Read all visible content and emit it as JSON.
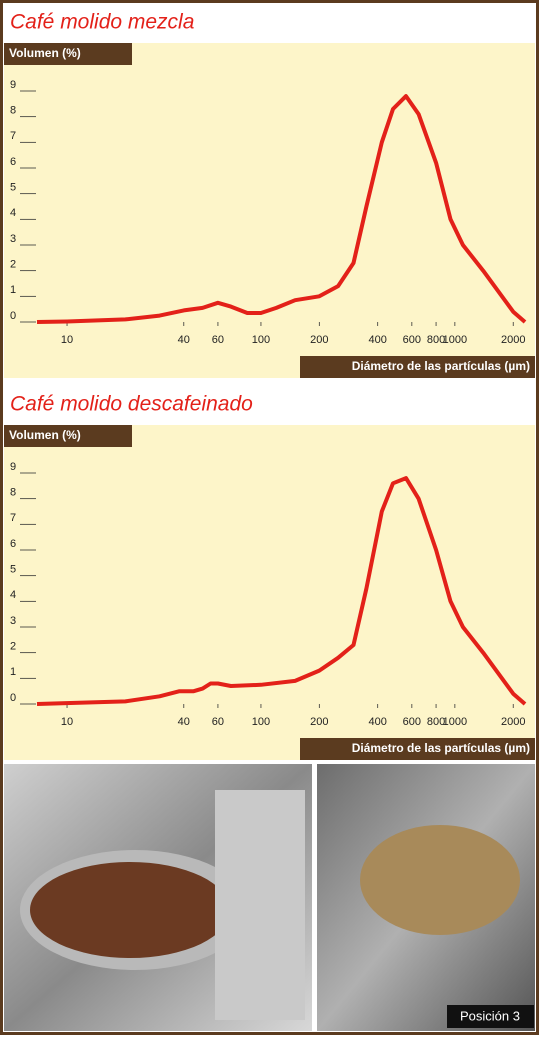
{
  "chart_data": [
    {
      "type": "line",
      "title": "Café molido mezcla",
      "y_label": "Volumen (%)",
      "x_label": "Diámetro de las partículas (µm)",
      "log_x": true,
      "xlim": [
        7,
        2300
      ],
      "xticks": [
        10,
        40,
        60,
        100,
        200,
        400,
        600,
        800,
        1000,
        2000
      ],
      "ylim": [
        0,
        9
      ],
      "yticks": [
        0,
        1,
        2,
        3,
        4,
        5,
        6,
        7,
        8,
        9
      ],
      "x": [
        7,
        10,
        20,
        30,
        40,
        50,
        60,
        70,
        85,
        100,
        120,
        150,
        200,
        250,
        300,
        350,
        420,
        480,
        560,
        650,
        800,
        950,
        1100,
        1400,
        2000,
        2300
      ],
      "values": [
        0,
        0.02,
        0.1,
        0.25,
        0.45,
        0.55,
        0.75,
        0.6,
        0.35,
        0.35,
        0.55,
        0.85,
        1.0,
        1.4,
        2.3,
        4.5,
        7,
        8.3,
        8.8,
        8.1,
        6.2,
        4.0,
        3.0,
        2.0,
        0.4,
        0
      ],
      "color": "#e32119"
    },
    {
      "type": "line",
      "title": "Café molido descafeinado",
      "y_label": "Volumen (%)",
      "x_label": "Diámetro de las partículas (µm)",
      "log_x": true,
      "xlim": [
        7,
        2300
      ],
      "xticks": [
        10,
        40,
        60,
        100,
        200,
        400,
        600,
        800,
        1000,
        2000
      ],
      "ylim": [
        0,
        9
      ],
      "yticks": [
        0,
        1,
        2,
        3,
        4,
        5,
        6,
        7,
        8,
        9
      ],
      "x": [
        7,
        20,
        30,
        38,
        45,
        50,
        55,
        60,
        70,
        100,
        150,
        200,
        250,
        300,
        350,
        420,
        480,
        560,
        650,
        800,
        950,
        1100,
        1400,
        2000,
        2300
      ],
      "values": [
        0,
        0.1,
        0.3,
        0.5,
        0.5,
        0.6,
        0.8,
        0.8,
        0.7,
        0.75,
        0.9,
        1.3,
        1.8,
        2.3,
        4.5,
        7.5,
        8.6,
        8.8,
        8.0,
        6.0,
        4.0,
        3.0,
        2.0,
        0.4,
        0
      ],
      "color": "#e32119"
    }
  ],
  "photo": {
    "caption": "Posición 3"
  }
}
